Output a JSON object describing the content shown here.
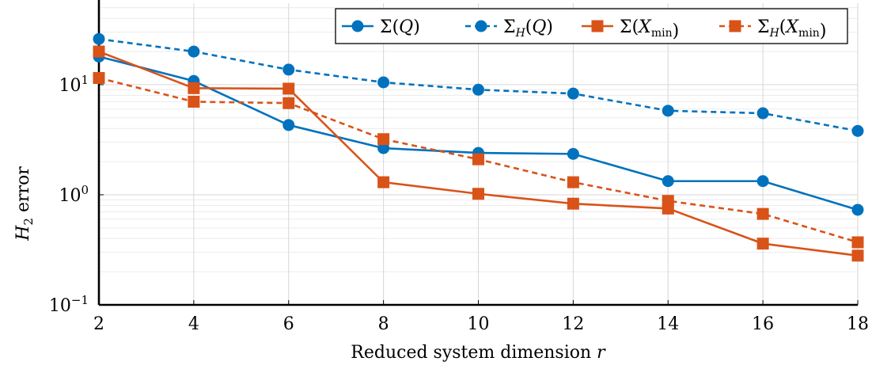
{
  "chart_data": {
    "type": "line",
    "title": "",
    "xlabel": "Reduced system dimension r",
    "ylabel": "H2 error",
    "yscale": "log",
    "xlim": [
      2,
      18
    ],
    "ylim": [
      0.1,
      55
    ],
    "grid": true,
    "legend_position": "top-right",
    "x": [
      2,
      4,
      6,
      8,
      10,
      12,
      14,
      16,
      18
    ],
    "x_tick_labels": [
      "2",
      "4",
      "6",
      "8",
      "10",
      "12",
      "14",
      "16",
      "18"
    ],
    "y_tick_labels": [
      {
        "base": "10",
        "exp": "−1",
        "value": 0.1
      },
      {
        "base": "10",
        "exp": "0",
        "value": 1
      },
      {
        "base": "10",
        "exp": "1",
        "value": 10
      }
    ],
    "series": [
      {
        "name": "Σ(Q)",
        "color": "#0072bd",
        "style": "solid",
        "marker": "circle",
        "values": [
          18,
          10.8,
          4.3,
          2.65,
          2.4,
          2.35,
          1.33,
          1.33,
          0.73
        ]
      },
      {
        "name": "Σ_H(Q)",
        "color": "#0072bd",
        "style": "dashed",
        "marker": "circle",
        "values": [
          26,
          20,
          13.7,
          10.5,
          9.0,
          8.3,
          5.8,
          5.5,
          3.8
        ]
      },
      {
        "name": "Σ(X_min)",
        "color": "#d95319",
        "style": "solid",
        "marker": "square",
        "values": [
          20,
          9.3,
          9.2,
          1.3,
          1.02,
          0.83,
          0.75,
          0.36,
          0.28
        ]
      },
      {
        "name": "Σ_H(X_min)",
        "color": "#d95319",
        "style": "dashed",
        "marker": "square",
        "values": [
          11.5,
          7.0,
          6.8,
          3.2,
          2.1,
          1.3,
          0.88,
          0.67,
          0.37
        ]
      }
    ]
  }
}
